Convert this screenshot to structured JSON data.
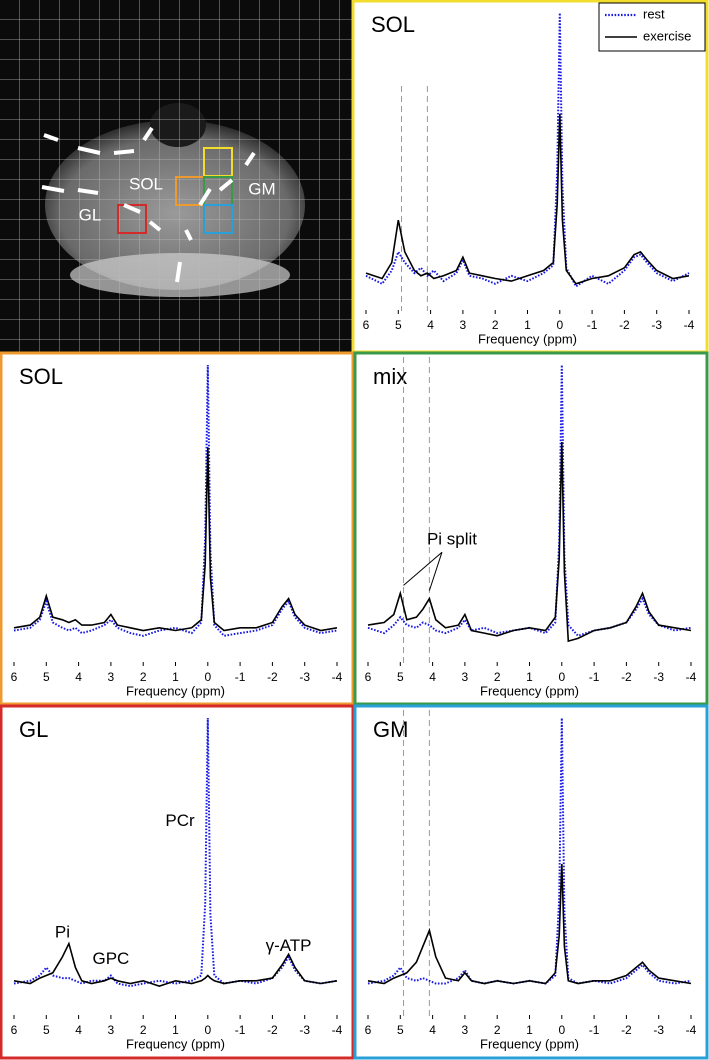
{
  "image": {
    "labels": [
      "SOL",
      "GM",
      "GL"
    ]
  },
  "chart_data": [
    {
      "type": "line",
      "title": "SOL",
      "xlabel": "Frequency (ppm)",
      "frame_color": "#f2dc2c",
      "legend": "upper right",
      "xlim": [
        6,
        -4
      ],
      "xticks": [
        6,
        5,
        4,
        3,
        2,
        1,
        0,
        -1,
        -2,
        -3,
        -4
      ],
      "ylim": [
        -10,
        100
      ],
      "vlines": [
        4.9,
        4.1
      ],
      "x": [
        6,
        5.5,
        5.2,
        5.0,
        4.8,
        4.5,
        4.3,
        4.1,
        3.9,
        3.6,
        3.2,
        3.0,
        2.8,
        2.4,
        2,
        1.5,
        1,
        0.5,
        0.2,
        0.08,
        0,
        -0.08,
        -0.2,
        -0.5,
        -1,
        -1.5,
        -2,
        -2.3,
        -2.5,
        -2.7,
        -3,
        -3.5,
        -4
      ],
      "series": [
        {
          "name": "rest",
          "color": "#1a1ae6",
          "dash": "dotted",
          "values": [
            1,
            -2,
            3,
            10,
            6,
            2,
            4,
            1,
            3,
            -1,
            2,
            7,
            1,
            0,
            -2,
            1,
            -1,
            2,
            5,
            40,
            100,
            35,
            4,
            -3,
            1,
            -2,
            3,
            8,
            9,
            6,
            2,
            -1,
            2
          ]
        },
        {
          "name": "exercise",
          "color": "#000000",
          "dash": "solid",
          "values": [
            2,
            0,
            6,
            22,
            10,
            3,
            1,
            2,
            0,
            1,
            3,
            8,
            2,
            1,
            0,
            -1,
            1,
            3,
            6,
            28,
            62,
            22,
            3,
            -2,
            0,
            1,
            4,
            9,
            10,
            7,
            3,
            0,
            1
          ]
        }
      ]
    },
    {
      "type": "line",
      "title": "SOL",
      "xlabel": "Frequency (ppm)",
      "frame_color": "#ef9a2e",
      "xlim": [
        6,
        -4
      ],
      "xticks": [
        6,
        5,
        4,
        3,
        2,
        1,
        0,
        -1,
        -2,
        -3,
        -4
      ],
      "ylim": [
        -10,
        100
      ],
      "x": [
        6,
        5.5,
        5.2,
        5.0,
        4.8,
        4.5,
        4.3,
        4.1,
        3.9,
        3.6,
        3.2,
        3.0,
        2.8,
        2.4,
        2,
        1.5,
        1,
        0.5,
        0.2,
        0.08,
        0,
        -0.08,
        -0.2,
        -0.5,
        -1,
        -1.5,
        -2,
        -2.3,
        -2.5,
        -2.7,
        -3,
        -3.5,
        -4
      ],
      "series": [
        {
          "name": "rest",
          "color": "#1a1ae6",
          "dash": "dotted",
          "values": [
            0,
            1,
            4,
            11,
            3,
            1,
            0,
            1,
            -1,
            0,
            2,
            4,
            1,
            -1,
            -2,
            0,
            1,
            -1,
            3,
            35,
            100,
            30,
            2,
            -2,
            -1,
            0,
            2,
            8,
            11,
            5,
            1,
            -1,
            0
          ]
        },
        {
          "name": "exercise",
          "color": "#000000",
          "dash": "solid",
          "values": [
            1,
            2,
            5,
            13,
            5,
            4,
            3,
            4,
            2,
            2,
            3,
            6,
            2,
            1,
            0,
            1,
            0,
            1,
            4,
            25,
            69,
            20,
            3,
            0,
            1,
            1,
            3,
            9,
            12,
            6,
            2,
            0,
            1
          ]
        }
      ]
    },
    {
      "type": "line",
      "title": "mix",
      "xlabel": "Frequency (ppm)",
      "frame_color": "#3a9a4a",
      "xlim": [
        6,
        -4
      ],
      "xticks": [
        6,
        5,
        4,
        3,
        2,
        1,
        0,
        -1,
        -2,
        -3,
        -4
      ],
      "ylim": [
        -10,
        100
      ],
      "vlines": [
        4.9,
        4.1
      ],
      "annotations": [
        {
          "text": "Pi split",
          "x": 3.4,
          "y": 34,
          "arrows": [
            [
              4.9,
              17
            ],
            [
              4.1,
              15
            ]
          ]
        }
      ],
      "x": [
        6,
        5.5,
        5.2,
        5.0,
        4.8,
        4.5,
        4.3,
        4.1,
        3.9,
        3.6,
        3.2,
        3.0,
        2.8,
        2.4,
        2,
        1.5,
        1,
        0.5,
        0.2,
        0.08,
        0,
        -0.08,
        -0.2,
        -0.5,
        -1,
        -1.5,
        -2,
        -2.3,
        -2.5,
        -2.7,
        -3,
        -3.5,
        -4
      ],
      "series": [
        {
          "name": "rest",
          "color": "#1a1ae6",
          "dash": "dotted",
          "values": [
            1,
            -1,
            2,
            5,
            2,
            1,
            3,
            2,
            0,
            -1,
            1,
            4,
            0,
            1,
            -1,
            0,
            1,
            -1,
            3,
            33,
            100,
            28,
            2,
            -2,
            0,
            1,
            3,
            8,
            12,
            6,
            2,
            0,
            1
          ]
        },
        {
          "name": "exercise",
          "color": "#000000",
          "dash": "solid",
          "values": [
            2,
            3,
            6,
            14,
            4,
            5,
            8,
            12,
            4,
            1,
            2,
            6,
            0,
            -1,
            -2,
            0,
            1,
            0,
            5,
            27,
            71,
            22,
            -4,
            -3,
            0,
            1,
            3,
            9,
            14,
            7,
            2,
            1,
            0
          ]
        }
      ]
    },
    {
      "type": "line",
      "title": "GL",
      "xlabel": "Frequency (ppm)",
      "frame_color": "#d42a2a",
      "xlim": [
        6,
        -4
      ],
      "xticks": [
        6,
        5,
        4,
        3,
        2,
        1,
        0,
        -1,
        -2,
        -3,
        -4
      ],
      "ylim": [
        -10,
        100
      ],
      "annotations": [
        {
          "text": "PCr",
          "x": 0.86,
          "y": 61
        },
        {
          "text": "Pi",
          "x": 4.5,
          "y": 19
        },
        {
          "text": "GPC",
          "x": 3.0,
          "y": 9
        },
        {
          "text": "γ-ATP",
          "x": -2.5,
          "y": 14
        }
      ],
      "x": [
        6,
        5.5,
        5.2,
        5.0,
        4.8,
        4.5,
        4.3,
        4.1,
        3.9,
        3.6,
        3.2,
        3.0,
        2.8,
        2.4,
        2,
        1.5,
        1,
        0.5,
        0.2,
        0.08,
        0,
        -0.08,
        -0.2,
        -0.5,
        -1,
        -1.5,
        -2,
        -2.3,
        -2.5,
        -2.7,
        -3,
        -3.5,
        -4
      ],
      "series": [
        {
          "name": "rest",
          "color": "#1a1ae6",
          "dash": "dotted",
          "values": [
            0,
            1,
            3,
            6,
            3,
            2,
            2,
            1,
            0,
            1,
            1,
            3,
            0,
            -1,
            0,
            1,
            0,
            1,
            3,
            30,
            100,
            26,
            3,
            0,
            1,
            0,
            2,
            6,
            10,
            5,
            1,
            0,
            1
          ]
        },
        {
          "name": "exercise",
          "color": "#000000",
          "dash": "solid",
          "values": [
            1,
            0,
            2,
            3,
            4,
            10,
            15,
            6,
            1,
            0,
            1,
            2,
            1,
            0,
            1,
            -1,
            1,
            0,
            1,
            2,
            3,
            2,
            1,
            0,
            1,
            1,
            2,
            7,
            11,
            6,
            1,
            0,
            1
          ]
        }
      ]
    },
    {
      "type": "line",
      "title": "GM",
      "xlabel": "Frequency (ppm)",
      "frame_color": "#2aa0d8",
      "xlim": [
        6,
        -4
      ],
      "xticks": [
        6,
        5,
        4,
        3,
        2,
        1,
        0,
        -1,
        -2,
        -3,
        -4
      ],
      "ylim": [
        -10,
        100
      ],
      "vlines": [
        4.9,
        4.1
      ],
      "x": [
        6,
        5.5,
        5.2,
        5.0,
        4.8,
        4.5,
        4.3,
        4.1,
        3.9,
        3.6,
        3.2,
        3.0,
        2.8,
        2.4,
        2,
        1.5,
        1,
        0.5,
        0.2,
        0.08,
        0,
        -0.08,
        -0.2,
        -0.5,
        -1,
        -1.5,
        -2,
        -2.3,
        -2.5,
        -2.7,
        -3,
        -3.5,
        -4
      ],
      "series": [
        {
          "name": "rest",
          "color": "#1a1ae6",
          "dash": "dotted",
          "values": [
            0,
            1,
            3,
            6,
            2,
            1,
            2,
            1,
            0,
            0,
            2,
            5,
            1,
            0,
            1,
            0,
            1,
            0,
            3,
            32,
            100,
            27,
            2,
            0,
            1,
            0,
            2,
            5,
            7,
            4,
            1,
            0,
            1
          ]
        },
        {
          "name": "exercise",
          "color": "#000000",
          "dash": "solid",
          "values": [
            1,
            0,
            2,
            3,
            4,
            8,
            14,
            20,
            10,
            2,
            1,
            4,
            1,
            0,
            1,
            0,
            1,
            0,
            4,
            18,
            45,
            14,
            1,
            0,
            1,
            1,
            3,
            6,
            8,
            5,
            2,
            1,
            0
          ]
        }
      ]
    }
  ]
}
